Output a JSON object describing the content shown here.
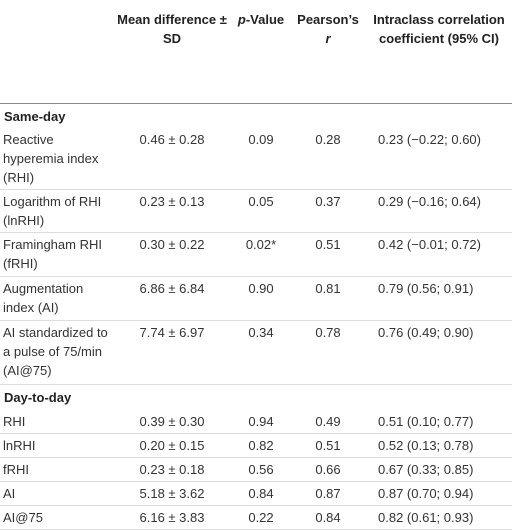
{
  "table": {
    "headers": [
      [
        {
          "text": "Mean difference ± SD"
        }
      ],
      [
        {
          "text": "p",
          "italic": true
        },
        {
          "text": "-Value"
        }
      ],
      [
        {
          "text": "Pearson’s "
        },
        {
          "text": "r",
          "italic": true
        }
      ],
      [
        {
          "text": "Intraclass correlation coefficient (95% CI)"
        }
      ]
    ],
    "sections": [
      {
        "title": "Same-day",
        "rows": [
          [
            "Reactive hyperemia index (RHI)",
            "0.46 ± 0.28",
            "0.09",
            "0.28",
            "0.23 (−0.22; 0.60)"
          ],
          [
            "Logarithm of RHI (lnRHI)",
            "0.23 ± 0.13",
            "0.05",
            "0.37",
            "0.29 (−0.16; 0.64)"
          ],
          [
            "Framingham RHI (fRHI)",
            "0.30 ± 0.22",
            "0.02*",
            "0.51",
            "0.42 (−0.01; 0.72)"
          ],
          [
            "Augmentation index (AI)",
            "6.86 ± 6.84",
            "0.90",
            "0.81",
            "0.79 (0.56; 0.91)"
          ],
          [
            "AI standardized to a pulse of 75/min (AI@75)",
            "7.74 ± 6.97",
            "0.34",
            "0.78",
            "0.76 (0.49; 0.90)"
          ]
        ]
      },
      {
        "title": "Day-to-day",
        "rows": [
          [
            "RHI",
            "0.39 ± 0.30",
            "0.94",
            "0.49",
            "0.51 (0.10; 0.77)"
          ],
          [
            "lnRHI",
            "0.20 ± 0.15",
            "0.82",
            "0.51",
            "0.52 (0.13; 0.78)"
          ],
          [
            "fRHI",
            "0.23 ± 0.18",
            "0.56",
            "0.66",
            "0.67 (0.33; 0.85)"
          ],
          [
            "AI",
            "5.18 ± 3.62",
            "0.84",
            "0.87",
            "0.87 (0.70; 0.94)"
          ],
          [
            "AI@75",
            "6.16 ± 3.83",
            "0.22",
            "0.84",
            "0.82 (0.61; 0.93)"
          ]
        ]
      }
    ]
  }
}
